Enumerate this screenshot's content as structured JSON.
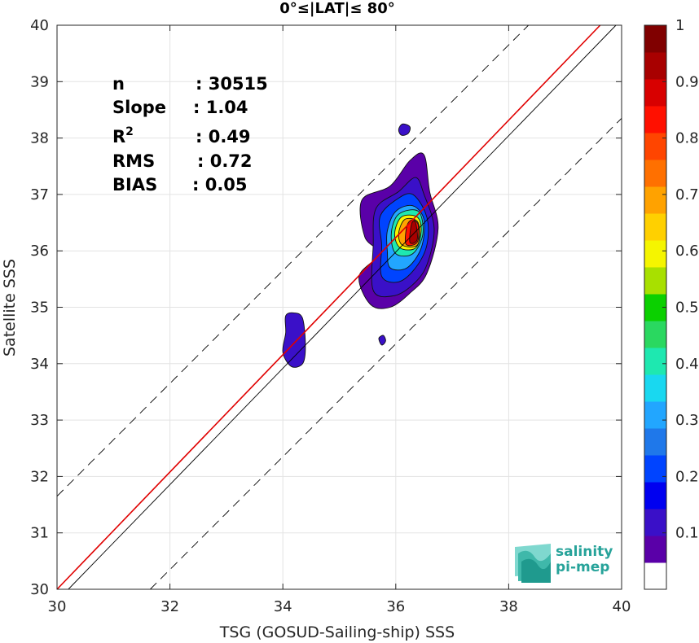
{
  "chart_data": {
    "type": "heatmap",
    "title": "0°≤|LAT|≤ 80°",
    "xlabel": "TSG (GOSUD-Sailing-ship) SSS",
    "ylabel": "Satellite SSS",
    "xlim": [
      30,
      40
    ],
    "ylim": [
      30,
      40
    ],
    "xticks": [
      "30",
      "32",
      "34",
      "36",
      "38",
      "40"
    ],
    "yticks": [
      "30",
      "31",
      "32",
      "33",
      "34",
      "35",
      "36",
      "37",
      "38",
      "39",
      "40"
    ],
    "grid": true,
    "colorbar": {
      "range": [
        0,
        1
      ],
      "ticks": [
        "0.1",
        "0.2",
        "0.3",
        "0.4",
        "0.5",
        "0.6",
        "0.7",
        "0.8",
        "0.9",
        "1"
      ],
      "colors": [
        "#ffffff",
        "#5a00a8",
        "#3a10c8",
        "#0000f0",
        "#0044ff",
        "#1f78ea",
        "#22a6ff",
        "#19d8f0",
        "#1ee8b0",
        "#2ad860",
        "#0bd000",
        "#a8e000",
        "#f5f500",
        "#ffd000",
        "#ffa200",
        "#ff7000",
        "#ff4500",
        "#ff1000",
        "#d80000",
        "#a80000",
        "#800000"
      ]
    },
    "stats": [
      {
        "label": "n",
        "value": ": 30515"
      },
      {
        "label": "Slope",
        "value": ": 1.04"
      },
      {
        "label": "R",
        "sup": "2",
        "value": ": 0.49"
      },
      {
        "label": "RMS",
        "value": ": 0.72"
      },
      {
        "label": "BIAS",
        "value": ": 0.05"
      }
    ],
    "lines": [
      {
        "name": "1:1",
        "color": "#000000",
        "style": "solid",
        "slope": 1,
        "intercept": 0
      },
      {
        "name": "regression",
        "color": "#e00000",
        "style": "solid",
        "slope": 1.04,
        "intercept": 30
      },
      {
        "name": "upper",
        "color": "#000000",
        "style": "dashed",
        "offset": 1.65
      },
      {
        "name": "lower",
        "color": "#000000",
        "style": "dashed",
        "offset": -1.65
      }
    ],
    "clusters": [
      {
        "name": "main",
        "cx": 36.3,
        "cy": 36.35,
        "levels": [
          {
            "v": 0.05,
            "pts": [
              [
                35.55,
                35.05
              ],
              [
                35.9,
                35.0
              ],
              [
                36.25,
                35.25
              ],
              [
                36.55,
                35.6
              ],
              [
                36.75,
                36.4
              ],
              [
                36.6,
                37.05
              ],
              [
                36.5,
                37.7
              ],
              [
                36.25,
                37.6
              ],
              [
                35.9,
                37.15
              ],
              [
                35.4,
                36.9
              ],
              [
                35.45,
                36.25
              ],
              [
                35.7,
                35.95
              ],
              [
                35.35,
                35.55
              ]
            ]
          },
          {
            "v": 0.1,
            "pts": [
              [
                35.6,
                35.3
              ],
              [
                35.95,
                35.2
              ],
              [
                36.3,
                35.4
              ],
              [
                36.55,
                35.75
              ],
              [
                36.68,
                36.4
              ],
              [
                36.5,
                37.0
              ],
              [
                36.35,
                37.3
              ],
              [
                36.05,
                37.05
              ],
              [
                35.65,
                36.75
              ],
              [
                35.6,
                36.1
              ]
            ]
          },
          {
            "v": 0.2,
            "pts": [
              [
                35.75,
                35.55
              ],
              [
                36.05,
                35.45
              ],
              [
                36.35,
                35.7
              ],
              [
                36.55,
                36.1
              ],
              [
                36.55,
                36.6
              ],
              [
                36.3,
                37.0
              ],
              [
                36.0,
                36.9
              ],
              [
                35.72,
                36.6
              ],
              [
                35.75,
                36.1
              ]
            ]
          },
          {
            "v": 0.3,
            "pts": [
              [
                35.9,
                35.7
              ],
              [
                36.2,
                35.7
              ],
              [
                36.45,
                36.05
              ],
              [
                36.5,
                36.55
              ],
              [
                36.3,
                36.8
              ],
              [
                36.0,
                36.7
              ],
              [
                35.85,
                36.35
              ],
              [
                35.85,
                36.0
              ]
            ]
          },
          {
            "v": 0.4,
            "pts": [
              [
                36.0,
                35.95
              ],
              [
                36.3,
                35.95
              ],
              [
                36.48,
                36.3
              ],
              [
                36.4,
                36.7
              ],
              [
                36.05,
                36.65
              ],
              [
                35.92,
                36.3
              ]
            ]
          },
          {
            "v": 0.6,
            "pts": [
              [
                36.08,
                36.05
              ],
              [
                36.35,
                36.05
              ],
              [
                36.45,
                36.35
              ],
              [
                36.38,
                36.6
              ],
              [
                36.1,
                36.6
              ],
              [
                35.98,
                36.3
              ]
            ]
          },
          {
            "v": 0.7,
            "pts": [
              [
                36.12,
                36.1
              ],
              [
                36.38,
                36.1
              ],
              [
                36.42,
                36.4
              ],
              [
                36.35,
                36.55
              ],
              [
                36.15,
                36.55
              ],
              [
                36.05,
                36.3
              ]
            ]
          },
          {
            "v": 0.85,
            "pts": [
              [
                36.18,
                36.12
              ],
              [
                36.38,
                36.15
              ],
              [
                36.4,
                36.45
              ],
              [
                36.3,
                36.55
              ],
              [
                36.2,
                36.45
              ]
            ]
          },
          {
            "v": 0.95,
            "pts": [
              [
                36.25,
                36.15
              ],
              [
                36.38,
                36.2
              ],
              [
                36.35,
                36.5
              ],
              [
                36.28,
                36.48
              ]
            ]
          }
        ]
      },
      {
        "name": "blob-34",
        "cx": 34.2,
        "cy": 34.45,
        "levels": [
          {
            "v": 0.1,
            "pts": [
              [
                34.05,
                34.85
              ],
              [
                34.2,
                34.9
              ],
              [
                34.35,
                34.8
              ],
              [
                34.4,
                34.3
              ],
              [
                34.35,
                34.0
              ],
              [
                34.15,
                33.95
              ],
              [
                34.0,
                34.2
              ],
              [
                34.05,
                34.55
              ]
            ]
          }
        ]
      },
      {
        "name": "blob-38",
        "cx": 36.15,
        "cy": 38.15,
        "levels": [
          {
            "v": 0.1,
            "pts": [
              [
                36.05,
                38.15
              ],
              [
                36.12,
                38.25
              ],
              [
                36.25,
                38.2
              ],
              [
                36.22,
                38.08
              ],
              [
                36.1,
                38.05
              ]
            ]
          }
        ]
      },
      {
        "name": "blob-speck",
        "cx": 35.75,
        "cy": 34.4,
        "levels": [
          {
            "v": 0.1,
            "pts": [
              [
                35.7,
                34.45
              ],
              [
                35.78,
                34.5
              ],
              [
                35.82,
                34.4
              ],
              [
                35.75,
                34.33
              ]
            ]
          }
        ]
      }
    ]
  },
  "logo": {
    "line1": "salinity",
    "line2": "pi-mep"
  }
}
